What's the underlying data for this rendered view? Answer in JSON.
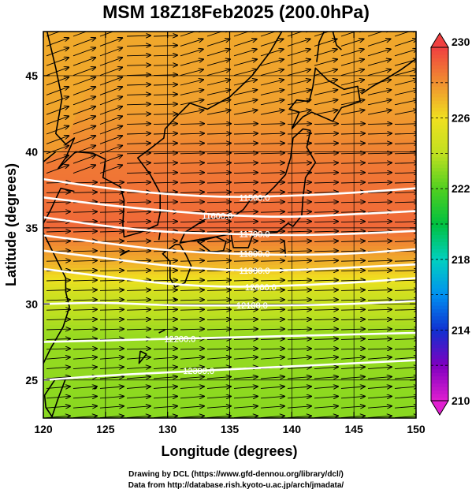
{
  "title": "MSM 18Z18Feb2025 (200.0hPa)",
  "xlabel": "Longitude (degrees)",
  "ylabel": "Latitude  (degrees)",
  "credits": [
    "Drawing by DCL (https://www.gfd-dennou.org/library/dcl/)",
    "Data from http://database.rish.kyoto-u.ac.jp/arch/jmadata/"
  ],
  "chart_data": {
    "type": "heatmap",
    "xlim": [
      120,
      150
    ],
    "ylim": [
      22.5,
      47.9
    ],
    "x_ticks": [
      120,
      125,
      130,
      135,
      140,
      145,
      150
    ],
    "y_ticks": [
      25,
      30,
      35,
      40,
      45
    ],
    "colorbar": {
      "min": 210,
      "max": 230,
      "ticks": [
        210,
        214,
        218,
        222,
        226,
        230
      ],
      "colors": [
        "#e020d0",
        "#8000c0",
        "#1030d0",
        "#0090f0",
        "#00d0c0",
        "#00c040",
        "#50d020",
        "#c0e020",
        "#f0e020",
        "#f09030",
        "#f04040"
      ]
    },
    "color_stops": [
      {
        "lat": 22.5,
        "value": 223.0
      },
      {
        "lat": 28.0,
        "value": 223.3
      },
      {
        "lat": 30.5,
        "value": 224.5
      },
      {
        "lat": 32.5,
        "value": 227.0
      },
      {
        "lat": 35.0,
        "value": 229.0
      },
      {
        "lat": 39.0,
        "value": 228.6
      },
      {
        "lat": 43.0,
        "value": 227.6
      },
      {
        "lat": 47.9,
        "value": 227.4
      }
    ],
    "contours": [
      {
        "value": 11500,
        "label": "11500.0",
        "points": [
          [
            120,
            38.2
          ],
          [
            125,
            37.6
          ],
          [
            130,
            37.2
          ],
          [
            135,
            37.0
          ],
          [
            140,
            37.1
          ],
          [
            145,
            37.3
          ],
          [
            150,
            37.6
          ]
        ],
        "label_pos": [
          137.0,
          37.0
        ]
      },
      {
        "value": 11600,
        "label": "11600.0",
        "points": [
          [
            120,
            37.0
          ],
          [
            125,
            36.5
          ],
          [
            130,
            36.1
          ],
          [
            135,
            35.8
          ],
          [
            140,
            35.7
          ],
          [
            145,
            35.9
          ],
          [
            150,
            36.1
          ]
        ],
        "label_pos": [
          134.0,
          35.8
        ]
      },
      {
        "value": 11700,
        "label": "11700.0",
        "points": [
          [
            120,
            35.7
          ],
          [
            125,
            35.1
          ],
          [
            130,
            34.7
          ],
          [
            135,
            34.6
          ],
          [
            140,
            34.5
          ],
          [
            145,
            34.6
          ],
          [
            150,
            34.8
          ]
        ],
        "label_pos": [
          137.0,
          34.6
        ]
      },
      {
        "value": 11800,
        "label": "11800.0",
        "points": [
          [
            120,
            34.5
          ],
          [
            125,
            34.0
          ],
          [
            130,
            33.5
          ],
          [
            135,
            33.3
          ],
          [
            140,
            33.2
          ],
          [
            145,
            33.3
          ],
          [
            150,
            33.6
          ]
        ],
        "label_pos": [
          137.0,
          33.3
        ]
      },
      {
        "value": 11900,
        "label": "11900.0",
        "points": [
          [
            120,
            33.5
          ],
          [
            125,
            33.0
          ],
          [
            130,
            32.5
          ],
          [
            135,
            32.2
          ],
          [
            140,
            32.2
          ],
          [
            145,
            32.4
          ],
          [
            150,
            32.6
          ]
        ],
        "label_pos": [
          137.0,
          32.2
        ]
      },
      {
        "value": 12000,
        "label": "12000.0",
        "points": [
          [
            120,
            32.3
          ],
          [
            125,
            31.8
          ],
          [
            130,
            31.3
          ],
          [
            135,
            31.1
          ],
          [
            140,
            31.2
          ],
          [
            145,
            31.4
          ],
          [
            150,
            31.7
          ]
        ],
        "label_pos": [
          137.5,
          31.1
        ]
      },
      {
        "value": 12100,
        "label": "12100.0",
        "points": [
          [
            120,
            30.0
          ],
          [
            125,
            30.1
          ],
          [
            130,
            29.9
          ],
          [
            135,
            29.9
          ],
          [
            140,
            29.9
          ],
          [
            145,
            30.0
          ],
          [
            150,
            30.2
          ]
        ],
        "label_pos": [
          136.8,
          29.9
        ]
      },
      {
        "value": 12200,
        "label": "12200.0",
        "points": [
          [
            120,
            27.5
          ],
          [
            125,
            27.6
          ],
          [
            130,
            27.7
          ],
          [
            135,
            27.8
          ],
          [
            140,
            27.9
          ],
          [
            145,
            28.0
          ],
          [
            150,
            28.1
          ]
        ],
        "label_pos": [
          131.0,
          27.7
        ]
      },
      {
        "value": 12300,
        "label": "12300.0",
        "points": [
          [
            120,
            25.0
          ],
          [
            125,
            25.3
          ],
          [
            130,
            25.5
          ],
          [
            135,
            25.7
          ],
          [
            140,
            25.9
          ],
          [
            145,
            26.1
          ],
          [
            150,
            26.3
          ]
        ],
        "label_pos": [
          132.5,
          25.6
        ]
      }
    ]
  }
}
